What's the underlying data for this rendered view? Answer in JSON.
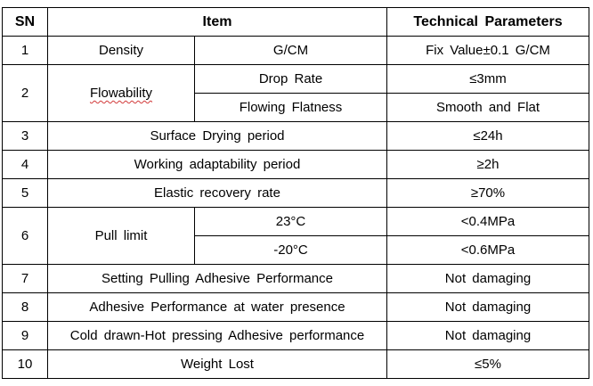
{
  "header": {
    "sn": "SN",
    "item": "Item",
    "params": "Technical Parameters"
  },
  "rows": [
    {
      "sn": "1",
      "item": "Density",
      "sub": "G/CM",
      "value": "Fix Value±0.1 G/CM"
    },
    {
      "sn": "2",
      "item": "Flowability",
      "subs": [
        {
          "sub": "Drop Rate",
          "value": "≤3mm"
        },
        {
          "sub": "Flowing Flatness",
          "value": "Smooth and Flat"
        }
      ]
    },
    {
      "sn": "3",
      "item": "Surface Drying period",
      "value": "≤24h"
    },
    {
      "sn": "4",
      "item": "Working adaptability period",
      "value": "≥2h"
    },
    {
      "sn": "5",
      "item": "Elastic recovery rate",
      "value": "≥70%"
    },
    {
      "sn": "6",
      "item": "Pull limit",
      "subs": [
        {
          "sub": "23°C",
          "value": "<0.4MPa"
        },
        {
          "sub": "-20°C",
          "value": "<0.6MPa"
        }
      ]
    },
    {
      "sn": "7",
      "item": "Setting Pulling Adhesive Performance",
      "value": "Not damaging"
    },
    {
      "sn": "8",
      "item": "Adhesive Performance at water presence",
      "value": "Not damaging"
    },
    {
      "sn": "9",
      "item": "Cold drawn-Hot pressing Adhesive performance",
      "value": "Not damaging"
    },
    {
      "sn": "10",
      "item": "Weight Lost",
      "value": "≤5%"
    }
  ]
}
